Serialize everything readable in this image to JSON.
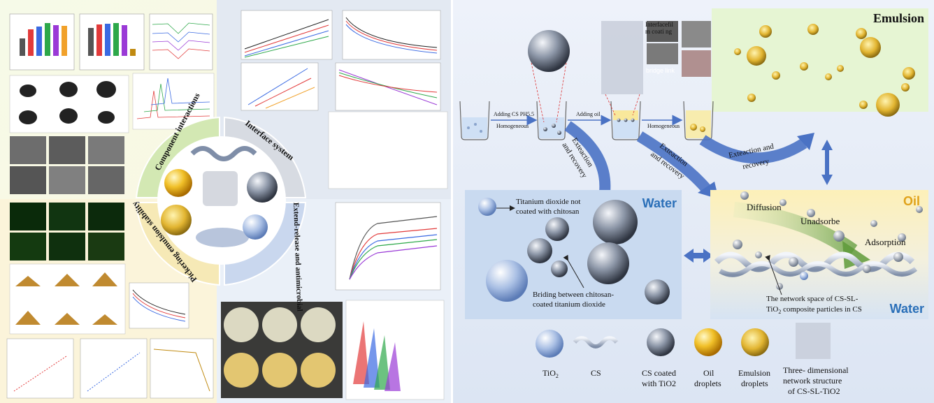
{
  "left_panel": {
    "segments": [
      "Component interactions",
      "Interface system",
      "Extend-release and antimicrobial",
      "Pickering emulsion stability"
    ]
  },
  "center_panel": {
    "panel_emulsion": "Emulsion",
    "panel_water": "Water",
    "panel_oil": "Oil",
    "panel_oil_water": "Water",
    "step_add_cs_line1": "Adding CS PH5.5",
    "step_add_cs_line2": "Homogeneous",
    "step_add_oil": "Adding oil",
    "step_homogeneous": "Homogeneous",
    "interface_film_line1": "Interfacefil",
    "interface_film_line2": "m coati ng",
    "bridge_link": "bridge link",
    "curve_arrow_1_line1": "Exteaction",
    "curve_arrow_1_line2": "and recovery",
    "curve_arrow_2_line1": "Exteaction",
    "curve_arrow_2_line2": "and recovery",
    "curve_arrow_3_line1": "Exteaction and",
    "curve_arrow_3_line2": "recovery",
    "tio2_not_coated_line1": "Titanium dioxide not",
    "tio2_not_coated_line2": "coated with chitosan",
    "bridging_line1": "Briding  between chitosan-",
    "bridging_line2": "coated titanium dioxide",
    "diffusion": "Diffusion",
    "unadsorbe": "Unadsorbe",
    "adsorption": "Adsorption",
    "network_line1": "The network space of CS-SL-",
    "network_line2": "TiO",
    "network_line2_sub": "2",
    "network_line2_rest": " composite particles in CS"
  },
  "legend": [
    {
      "line1": "TiO",
      "sub": "2",
      "line2": ""
    },
    {
      "line1": "CS",
      "sub": "",
      "line2": ""
    },
    {
      "line1": "CS coated",
      "sub": "",
      "line2": "with TiO2"
    },
    {
      "line1": "Oil",
      "sub": "",
      "line2": "droplets"
    },
    {
      "line1": "Emulsion",
      "sub": "",
      "line2": "droplets"
    },
    {
      "line1": "Three- dimensional",
      "sub": "",
      "line2": "network structure",
      "line3": "of CS-SL-TiO2"
    }
  ],
  "colors": {
    "left_bg": "#eef4d8",
    "center_bg": "#e6edf7",
    "water_panel": "#c9daf0",
    "oil_panel": "#fbf3c8",
    "emulsion_panel": "#e8f6d6",
    "blue_arrow": "#4a72c4",
    "green_arrow": "#8fc06a",
    "title_green": "#3d7d2a",
    "title_blue": "#2a6fb8",
    "title_orange": "#e0a21a"
  }
}
